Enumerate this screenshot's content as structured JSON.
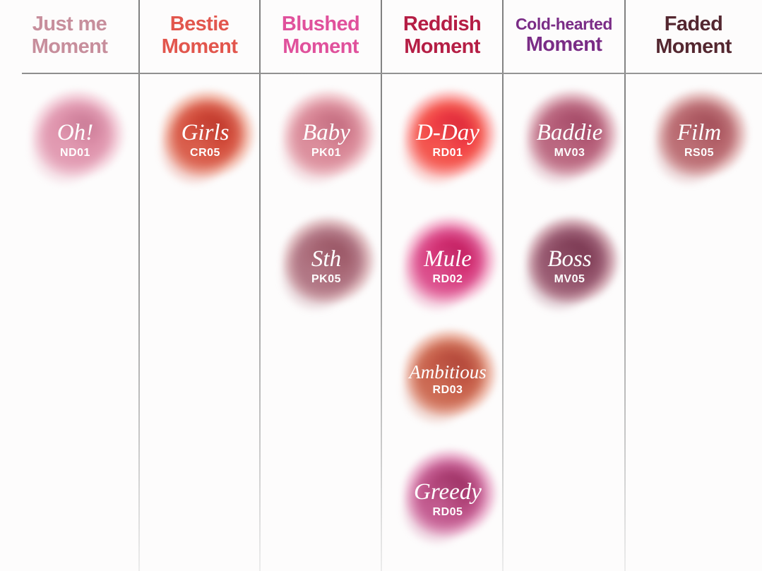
{
  "chart_data": {
    "type": "table",
    "legend_position": "none",
    "text_color_on_swatch": "#ffffff",
    "divider_color": "#8c8c8c",
    "background_color": "#fdfcfc",
    "collections": [
      {
        "title_line1": "Just me",
        "title_line2": "Moment",
        "title_color": "#c78e9c",
        "swatches": [
          {
            "name": "Oh!",
            "code": "ND01",
            "row": 1,
            "color_center": "#db8aa5",
            "color_mid": "#e29cb3",
            "color_edge": "#f3cfda"
          }
        ]
      },
      {
        "title_line1": "Bestie",
        "title_line2": "Moment",
        "title_color": "#e2564d",
        "swatches": [
          {
            "name": "Girls",
            "code": "CR05",
            "row": 1,
            "color_center": "#cf4130",
            "color_mid": "#da614f",
            "color_edge": "#f2bbac"
          }
        ]
      },
      {
        "title_line1": "Blushed",
        "title_line2": "Moment",
        "title_color": "#e0519c",
        "swatches": [
          {
            "name": "Baby",
            "code": "PK01",
            "row": 1,
            "color_center": "#d37a8c",
            "color_mid": "#dc909e",
            "color_edge": "#f0c5cb"
          },
          {
            "name": "Sth",
            "code": "PK05",
            "row": 2,
            "color_center": "#a4606e",
            "color_mid": "#b27886",
            "color_edge": "#dcb7bb"
          }
        ]
      },
      {
        "title_line1": "Reddish",
        "title_line2": "Moment",
        "title_color": "#b51e45",
        "swatches": [
          {
            "name": "D-Day",
            "code": "RD01",
            "row": 1,
            "color_center": "#f0313f",
            "color_mid": "#f45850",
            "color_edge": "#fcafae"
          },
          {
            "name": "Mule",
            "code": "RD02",
            "row": 2,
            "color_center": "#d2256b",
            "color_mid": "#dc518e",
            "color_edge": "#f4b3ce"
          },
          {
            "name": "Ambitious",
            "code": "RD03",
            "row": 3,
            "color_center": "#c0503e",
            "color_mid": "#cd6d56",
            "color_edge": "#ecb6a6"
          },
          {
            "name": "Greedy",
            "code": "RD05",
            "row": 4,
            "color_center": "#ab3a70",
            "color_mid": "#c45e92",
            "color_edge": "#eab0cd"
          }
        ]
      },
      {
        "title_line1": "Cold-hearted",
        "title_line2": "Moment",
        "title_color": "#7a2c86",
        "swatches": [
          {
            "name": "Baddie",
            "code": "MV03",
            "row": 1,
            "color_center": "#b05370",
            "color_mid": "#bc6b83",
            "color_edge": "#e0b3be"
          },
          {
            "name": "Boss",
            "code": "MV05",
            "row": 2,
            "color_center": "#84415a",
            "color_mid": "#9a5c73",
            "color_edge": "#cfa4af"
          }
        ]
      },
      {
        "title_line1": "Faded",
        "title_line2": "Moment",
        "title_color": "#542730",
        "swatches": [
          {
            "name": "Film",
            "code": "RS05",
            "row": 1,
            "color_center": "#b05a62",
            "color_mid": "#bd7177",
            "color_edge": "#e2b8b8"
          }
        ]
      }
    ]
  }
}
